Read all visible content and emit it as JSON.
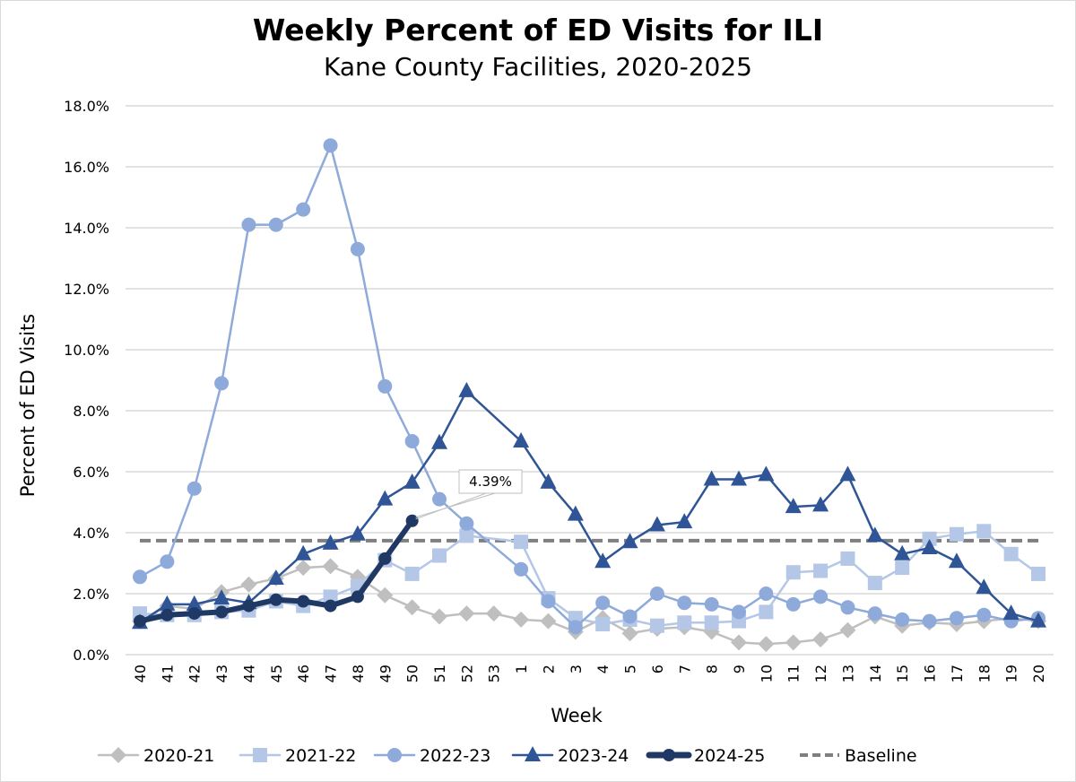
{
  "chart_data": {
    "type": "line",
    "title": "Weekly Percent of ED Visits for ILI",
    "subtitle": "Kane County Facilities, 2020-2025",
    "xlabel": "Week",
    "ylabel": "Percent of ED Visits",
    "ylim": [
      0,
      18
    ],
    "ytick_step": 2,
    "ytick_format": "percent_1dp",
    "yticks": [
      "0.0%",
      "2.0%",
      "4.0%",
      "6.0%",
      "8.0%",
      "10.0%",
      "12.0%",
      "14.0%",
      "16.0%",
      "18.0%"
    ],
    "grid": "horizontal",
    "legend_position": "bottom",
    "categories": [
      "40",
      "41",
      "42",
      "43",
      "44",
      "45",
      "46",
      "47",
      "48",
      "49",
      "50",
      "51",
      "52",
      "53",
      "1",
      "2",
      "3",
      "4",
      "5",
      "6",
      "7",
      "8",
      "9",
      "10",
      "11",
      "12",
      "13",
      "14",
      "15",
      "16",
      "17",
      "18",
      "19",
      "20"
    ],
    "series": [
      {
        "name": "2020-21",
        "color": "#bfbfbf",
        "marker": "diamond",
        "values": [
          1.1,
          1.6,
          1.5,
          2.05,
          2.3,
          2.5,
          2.85,
          2.9,
          2.55,
          1.95,
          1.55,
          1.25,
          1.35,
          1.35,
          1.15,
          1.1,
          0.75,
          1.2,
          0.7,
          0.85,
          0.9,
          0.75,
          0.4,
          0.35,
          0.4,
          0.5,
          0.8,
          1.25,
          0.95,
          1.05,
          1.0,
          1.1,
          1.2,
          1.1
        ]
      },
      {
        "name": "2021-22",
        "color": "#b4c7e7",
        "marker": "square",
        "values": [
          1.35,
          1.3,
          1.3,
          1.4,
          1.45,
          1.75,
          1.6,
          1.9,
          2.25,
          3.1,
          2.65,
          3.25,
          3.9,
          null,
          3.7,
          1.85,
          1.2,
          1.0,
          1.15,
          0.95,
          1.05,
          1.05,
          1.1,
          1.4,
          2.7,
          2.75,
          3.15,
          2.35,
          2.85,
          3.8,
          3.95,
          4.05,
          3.3,
          2.65
        ]
      },
      {
        "name": "2022-23",
        "color": "#8eaadb",
        "marker": "circle",
        "values": [
          2.55,
          3.05,
          5.45,
          8.9,
          14.1,
          14.1,
          14.6,
          16.7,
          13.3,
          8.8,
          7.0,
          5.1,
          4.3,
          null,
          2.8,
          1.75,
          0.9,
          1.7,
          1.25,
          2.0,
          1.7,
          1.65,
          1.4,
          2.0,
          1.65,
          1.9,
          1.55,
          1.35,
          1.15,
          1.1,
          1.2,
          1.3,
          1.1,
          1.2
        ]
      },
      {
        "name": "2023-24",
        "color": "#2f5597",
        "marker": "triangle",
        "values": [
          1.05,
          1.65,
          1.65,
          1.85,
          1.7,
          2.5,
          3.3,
          3.65,
          3.95,
          5.1,
          5.65,
          6.95,
          8.65,
          null,
          7.0,
          5.65,
          4.6,
          3.05,
          3.7,
          4.25,
          4.35,
          5.75,
          5.75,
          5.9,
          4.85,
          4.9,
          5.9,
          3.9,
          3.3,
          3.5,
          3.05,
          2.2,
          1.35,
          1.1
        ]
      },
      {
        "name": "2024-25",
        "color": "#1f3864",
        "marker": "circle-small",
        "thick": true,
        "values": [
          1.1,
          1.3,
          1.35,
          1.4,
          1.6,
          1.8,
          1.75,
          1.6,
          1.9,
          3.15,
          4.39,
          null,
          null,
          null,
          null,
          null,
          null,
          null,
          null,
          null,
          null,
          null,
          null,
          null,
          null,
          null,
          null,
          null,
          null,
          null,
          null,
          null,
          null,
          null
        ]
      }
    ],
    "baseline": {
      "name": "Baseline",
      "color": "#7f7f7f",
      "value": 3.74
    },
    "annotations": [
      {
        "series": "2024-25",
        "category": "50",
        "text": "4.39%"
      }
    ]
  }
}
